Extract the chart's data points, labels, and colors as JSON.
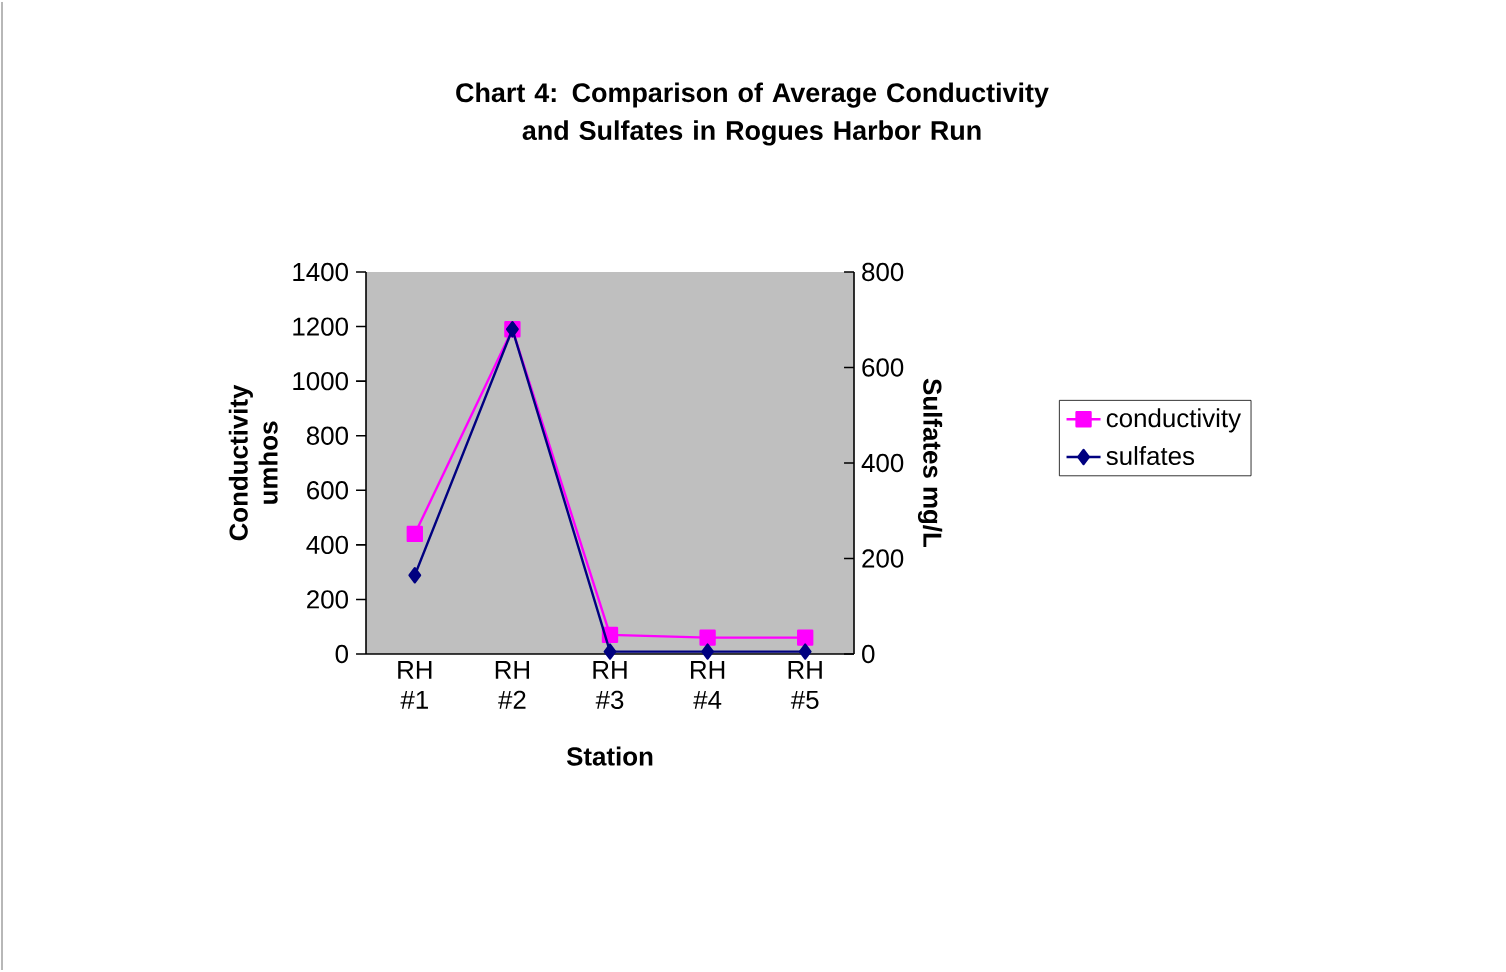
{
  "chart_data": {
    "type": "line",
    "title": "Chart 4:  Comparison of Average Conductivity and Sulfates in Rogues Harbor Run",
    "xlabel": "Station",
    "ylabel": "Conductivity umhos",
    "y2label": "Sulfates mg/L",
    "categories": [
      "RH #1",
      "RH #2",
      "RH #3",
      "RH #4",
      "RH #5"
    ],
    "series": [
      {
        "name": "conductivity",
        "color": "#ff00ff",
        "marker": "square",
        "values": [
          440,
          1190,
          70,
          60,
          60
        ]
      },
      {
        "name": "sulfates",
        "color": "#000080",
        "marker": "diamond",
        "axis": "y2",
        "values": [
          165,
          680,
          5,
          5,
          5
        ]
      }
    ],
    "ylim": [
      0,
      1400
    ],
    "yticks": [
      0,
      200,
      400,
      600,
      800,
      1000,
      1200,
      1400
    ],
    "y2lim": [
      0,
      800
    ],
    "y2ticks": [
      0,
      200,
      400,
      600,
      800
    ],
    "grid": false,
    "legend": "right",
    "line_style": "solid"
  }
}
